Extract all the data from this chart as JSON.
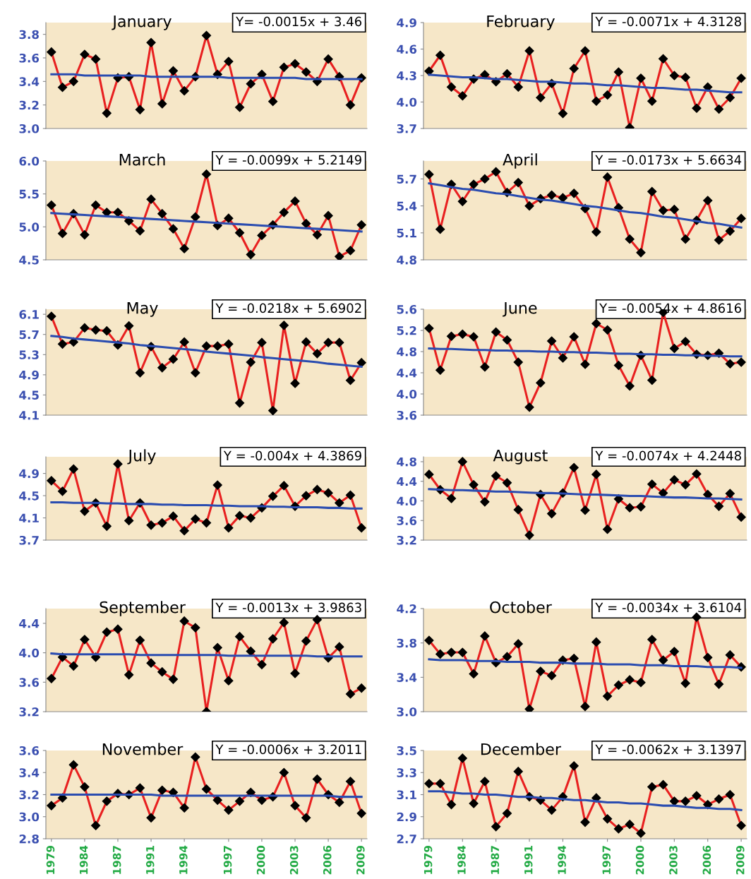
{
  "chart_data": [
    {
      "type": "line",
      "title": "January",
      "categories": [
        "1979",
        null,
        null,
        "1984",
        null,
        null,
        "1987",
        null,
        null,
        "1991",
        null,
        null,
        "1994",
        null,
        null,
        null,
        "1997",
        null,
        null,
        "2000",
        null,
        null,
        "2003",
        null,
        null,
        "2006",
        null,
        null,
        "2009"
      ],
      "tick_labels": "y",
      "ylim": [
        3.0,
        3.9
      ],
      "yticks": [
        {
          "value": 3.0,
          "label": "3.0"
        },
        3.2,
        3.4,
        3.6,
        3.8
      ],
      "marker": "diamond",
      "annotations": [
        "Y= -0.0015x + 3.46"
      ],
      "series": [
        {
          "color": "#e82020",
          "values": [
            3.65,
            3.35,
            3.4,
            3.63,
            3.59,
            3.13,
            3.43,
            3.44,
            3.16,
            3.73,
            3.21,
            3.49,
            3.32,
            3.44,
            3.79,
            3.46,
            3.57,
            3.18,
            3.38,
            3.46,
            3.23,
            3.52,
            3.55,
            3.48,
            3.4,
            3.59,
            3.44,
            3.2,
            3.43
          ]
        },
        {
          "color": "#2a4cb0",
          "marker": "none",
          "values": [
            3.46,
            3.46,
            3.46,
            3.45,
            3.45,
            3.45,
            3.45,
            3.45,
            3.45,
            3.44,
            3.44,
            3.44,
            3.44,
            3.44,
            3.44,
            3.44,
            3.43,
            3.43,
            3.43,
            3.43,
            3.43,
            3.43,
            3.43,
            3.42,
            3.42,
            3.42,
            3.42,
            3.42,
            3.42
          ]
        }
      ]
    },
    {
      "type": "line",
      "title": "February",
      "categories": [
        "1979",
        null,
        null,
        "1984",
        null,
        null,
        "1987",
        null,
        null,
        "1991",
        null,
        null,
        "1994",
        null,
        null,
        null,
        "1997",
        null,
        null,
        "2000",
        null,
        null,
        "2003",
        null,
        null,
        "2006",
        null,
        null,
        "2009"
      ],
      "tick_labels": "y",
      "ylim": [
        3.7,
        4.9
      ],
      "yticks": [
        3.7,
        {
          "value": 4.0,
          "label": "4.0"
        },
        4.3,
        4.6,
        4.9
      ],
      "marker": "diamond",
      "annotations": [
        "Y = -0.0071x + 4.3128"
      ],
      "series": [
        {
          "color": "#e82020",
          "values": [
            4.35,
            4.53,
            4.17,
            4.07,
            4.26,
            4.31,
            4.23,
            4.32,
            4.17,
            4.58,
            4.05,
            4.21,
            3.87,
            4.38,
            4.58,
            4.01,
            4.08,
            4.34,
            3.71,
            4.27,
            4.01,
            4.49,
            4.3,
            4.28,
            3.93,
            4.17,
            3.92,
            4.05,
            4.27
          ]
        },
        {
          "color": "#2a4cb0",
          "marker": "none",
          "values": [
            4.31,
            4.3,
            4.29,
            4.28,
            4.28,
            4.27,
            4.26,
            4.26,
            4.25,
            4.24,
            4.23,
            4.23,
            4.22,
            4.21,
            4.21,
            4.2,
            4.19,
            4.19,
            4.18,
            4.17,
            4.16,
            4.16,
            4.15,
            4.14,
            4.14,
            4.13,
            4.12,
            4.11,
            4.11
          ]
        }
      ]
    },
    {
      "type": "line",
      "title": "March",
      "categories": [
        "1979",
        null,
        null,
        "1984",
        null,
        null,
        "1987",
        null,
        null,
        "1991",
        null,
        null,
        "1994",
        null,
        null,
        null,
        "1997",
        null,
        null,
        "2000",
        null,
        null,
        "2003",
        null,
        null,
        "2006",
        null,
        null,
        "2009"
      ],
      "tick_labels": "y",
      "ylim": [
        4.5,
        6.0
      ],
      "yticks": [
        4.5,
        {
          "value": 5.0,
          "label": "5.0"
        },
        5.5,
        {
          "value": 6.0,
          "label": "6.0"
        }
      ],
      "marker": "diamond",
      "annotations": [
        "Y = -0.0099x + 5.2149"
      ],
      "series": [
        {
          "color": "#e82020",
          "values": [
            5.33,
            4.9,
            5.2,
            4.88,
            5.33,
            5.22,
            5.22,
            5.09,
            4.94,
            5.42,
            5.2,
            4.97,
            4.67,
            5.15,
            5.8,
            5.02,
            5.13,
            4.91,
            4.58,
            4.87,
            5.03,
            5.22,
            5.39,
            5.05,
            4.88,
            5.17,
            4.55,
            4.64,
            5.03
          ]
        },
        {
          "color": "#2a4cb0",
          "marker": "none",
          "values": [
            5.21,
            5.2,
            5.19,
            5.18,
            5.17,
            5.16,
            5.15,
            5.14,
            5.13,
            5.12,
            5.11,
            5.1,
            5.09,
            5.08,
            5.07,
            5.06,
            5.05,
            5.04,
            5.03,
            5.02,
            5.01,
            5.0,
            4.99,
            4.98,
            4.97,
            4.96,
            4.95,
            4.94,
            4.93
          ]
        }
      ]
    },
    {
      "type": "line",
      "title": "April",
      "categories": [
        "1979",
        null,
        null,
        "1984",
        null,
        null,
        "1987",
        null,
        null,
        "1991",
        null,
        null,
        "1994",
        null,
        null,
        null,
        "1997",
        null,
        null,
        "2000",
        null,
        null,
        "2003",
        null,
        null,
        "2006",
        null,
        null,
        "2009"
      ],
      "tick_labels": "y",
      "ylim": [
        4.8,
        5.9
      ],
      "yticks": [
        4.8,
        5.1,
        5.4,
        5.7
      ],
      "marker": "diamond",
      "annotations": [
        "Y = -0.0173x + 5.6634"
      ],
      "series": [
        {
          "color": "#e82020",
          "values": [
            5.75,
            5.14,
            5.64,
            5.45,
            5.64,
            5.7,
            5.78,
            5.55,
            5.66,
            5.4,
            5.48,
            5.52,
            5.49,
            5.54,
            5.37,
            5.11,
            5.72,
            5.38,
            5.03,
            4.88,
            5.56,
            5.35,
            5.36,
            5.03,
            5.24,
            5.46,
            5.02,
            5.12,
            5.26
          ]
        },
        {
          "color": "#2a4cb0",
          "marker": "none",
          "values": [
            5.65,
            5.63,
            5.61,
            5.59,
            5.58,
            5.56,
            5.54,
            5.53,
            5.51,
            5.49,
            5.47,
            5.46,
            5.44,
            5.42,
            5.4,
            5.39,
            5.37,
            5.35,
            5.33,
            5.32,
            5.3,
            5.28,
            5.27,
            5.25,
            5.23,
            5.21,
            5.2,
            5.18,
            5.16
          ]
        }
      ]
    },
    {
      "type": "line",
      "title": "May",
      "categories": [
        "1979",
        null,
        null,
        "1984",
        null,
        null,
        "1987",
        null,
        null,
        "1991",
        null,
        null,
        "1994",
        null,
        null,
        null,
        "1997",
        null,
        null,
        "2000",
        null,
        null,
        "2003",
        null,
        null,
        "2006",
        null,
        null,
        "2009"
      ],
      "tick_labels": "y",
      "ylim": [
        4.1,
        6.2
      ],
      "yticks": [
        4.1,
        4.5,
        4.9,
        5.3,
        5.7,
        6.1
      ],
      "marker": "diamond",
      "annotations": [
        "Y = -0.0218x + 5.6902"
      ],
      "series": [
        {
          "color": "#e82020",
          "values": [
            6.06,
            5.51,
            5.55,
            5.83,
            5.79,
            5.77,
            5.49,
            5.87,
            4.94,
            5.46,
            5.04,
            5.21,
            5.55,
            4.94,
            5.47,
            5.47,
            5.51,
            4.34,
            5.15,
            5.54,
            4.19,
            5.88,
            4.73,
            5.55,
            5.32,
            5.54,
            5.54,
            4.79,
            5.14
          ]
        },
        {
          "color": "#2a4cb0",
          "marker": "none",
          "values": [
            5.67,
            5.65,
            5.62,
            5.6,
            5.58,
            5.56,
            5.54,
            5.52,
            5.49,
            5.47,
            5.45,
            5.43,
            5.41,
            5.39,
            5.36,
            5.34,
            5.32,
            5.3,
            5.28,
            5.25,
            5.23,
            5.21,
            5.19,
            5.17,
            5.15,
            5.12,
            5.1,
            5.08,
            5.06
          ]
        }
      ]
    },
    {
      "type": "line",
      "title": "June",
      "categories": [
        "1979",
        null,
        null,
        "1984",
        null,
        null,
        "1987",
        null,
        null,
        "1991",
        null,
        null,
        "1994",
        null,
        null,
        null,
        "1997",
        null,
        null,
        "2000",
        null,
        null,
        "2003",
        null,
        null,
        "2006",
        null,
        null,
        "2009"
      ],
      "tick_labels": "y",
      "ylim": [
        3.6,
        5.6
      ],
      "yticks": [
        3.6,
        {
          "value": 4.0,
          "label": "4.0"
        },
        4.4,
        4.8,
        5.2,
        5.6
      ],
      "marker": "diamond",
      "annotations": [
        "Y= -0.0054x + 4.8616"
      ],
      "series": [
        {
          "color": "#e82020",
          "values": [
            5.24,
            4.45,
            5.09,
            5.13,
            5.08,
            4.51,
            5.17,
            5.02,
            4.6,
            3.75,
            4.21,
            5.0,
            4.68,
            5.08,
            4.56,
            5.33,
            5.21,
            4.54,
            4.15,
            4.73,
            4.26,
            5.54,
            4.86,
            4.99,
            4.75,
            4.73,
            4.77,
            4.57,
            4.6
          ]
        },
        {
          "color": "#2a4cb0",
          "marker": "none",
          "values": [
            4.86,
            4.85,
            4.85,
            4.84,
            4.83,
            4.83,
            4.82,
            4.82,
            4.81,
            4.81,
            4.8,
            4.8,
            4.79,
            4.79,
            4.78,
            4.78,
            4.77,
            4.76,
            4.76,
            4.75,
            4.75,
            4.74,
            4.74,
            4.73,
            4.73,
            4.72,
            4.72,
            4.71,
            4.71
          ]
        }
      ]
    },
    {
      "type": "line",
      "title": "July",
      "categories": [
        "1979",
        null,
        null,
        "1984",
        null,
        null,
        "1987",
        null,
        null,
        "1991",
        null,
        null,
        "1994",
        null,
        null,
        null,
        "1997",
        null,
        null,
        "2000",
        null,
        null,
        "2003",
        null,
        null,
        "2006",
        null,
        null,
        "2009"
      ],
      "tick_labels": "y",
      "ylim": [
        3.7,
        5.2
      ],
      "yticks": [
        3.7,
        4.1,
        4.5,
        4.9
      ],
      "marker": "diamond",
      "annotations": [
        "Y = -0.004x + 4.3869"
      ],
      "series": [
        {
          "color": "#e82020",
          "values": [
            4.77,
            4.58,
            4.98,
            4.22,
            4.37,
            3.95,
            5.07,
            4.05,
            4.37,
            3.97,
            4.01,
            4.13,
            3.87,
            4.08,
            4.01,
            4.69,
            3.92,
            4.14,
            4.1,
            4.28,
            4.49,
            4.68,
            4.31,
            4.5,
            4.61,
            4.55,
            4.37,
            4.51,
            3.92
          ]
        },
        {
          "color": "#2a4cb0",
          "marker": "none",
          "values": [
            4.38,
            4.38,
            4.37,
            4.37,
            4.37,
            4.36,
            4.36,
            4.35,
            4.35,
            4.35,
            4.34,
            4.34,
            4.33,
            4.33,
            4.33,
            4.32,
            4.32,
            4.31,
            4.31,
            4.31,
            4.3,
            4.3,
            4.29,
            4.29,
            4.29,
            4.28,
            4.28,
            4.27,
            4.27
          ]
        }
      ]
    },
    {
      "type": "line",
      "title": "August",
      "categories": [
        "1979",
        null,
        null,
        "1984",
        null,
        null,
        "1987",
        null,
        null,
        "1991",
        null,
        null,
        "1994",
        null,
        null,
        null,
        "1997",
        null,
        null,
        "2000",
        null,
        null,
        "2003",
        null,
        null,
        "2006",
        null,
        null,
        "2009"
      ],
      "tick_labels": "y",
      "ylim": [
        3.2,
        4.9
      ],
      "yticks": [
        3.2,
        3.6,
        {
          "value": 4.0,
          "label": "4.0"
        },
        4.4,
        4.8
      ],
      "marker": "diamond",
      "annotations": [
        "Y = -0.0074x + 4.2448"
      ],
      "series": [
        {
          "color": "#e82020",
          "values": [
            4.54,
            4.23,
            4.05,
            4.8,
            4.33,
            3.98,
            4.51,
            4.37,
            3.82,
            3.3,
            4.13,
            3.74,
            4.16,
            4.68,
            3.81,
            4.54,
            3.42,
            4.04,
            3.86,
            3.88,
            4.34,
            4.16,
            4.43,
            4.33,
            4.55,
            4.13,
            3.89,
            4.15,
            3.67
          ]
        },
        {
          "color": "#2a4cb0",
          "marker": "none",
          "values": [
            4.24,
            4.23,
            4.22,
            4.22,
            4.21,
            4.2,
            4.19,
            4.19,
            4.18,
            4.17,
            4.16,
            4.16,
            4.15,
            4.14,
            4.13,
            4.13,
            4.12,
            4.11,
            4.1,
            4.1,
            4.09,
            4.08,
            4.07,
            4.07,
            4.06,
            4.05,
            4.05,
            4.04,
            4.03
          ]
        }
      ]
    },
    {
      "type": "line",
      "title": "September",
      "categories": [
        "1979",
        null,
        null,
        "1984",
        null,
        null,
        "1987",
        null,
        null,
        "1991",
        null,
        null,
        "1994",
        null,
        null,
        null,
        "1997",
        null,
        null,
        "2000",
        null,
        null,
        "2003",
        null,
        null,
        "2006",
        null,
        null,
        "2009"
      ],
      "tick_labels": "y",
      "ylim": [
        3.2,
        4.6
      ],
      "yticks": [
        3.2,
        3.6,
        {
          "value": 4.0,
          "label": "4.0"
        },
        4.4
      ],
      "marker": "diamond",
      "annotations": [
        "Y = -0.0013x + 3.9863"
      ],
      "series": [
        {
          "color": "#e82020",
          "values": [
            3.65,
            3.94,
            3.82,
            4.18,
            3.94,
            4.28,
            4.32,
            3.7,
            4.17,
            3.86,
            3.74,
            3.64,
            4.43,
            4.34,
            3.2,
            4.07,
            3.62,
            4.22,
            4.02,
            3.84,
            4.19,
            4.41,
            3.72,
            4.16,
            4.45,
            3.93,
            4.08,
            3.44,
            3.52
          ]
        },
        {
          "color": "#2a4cb0",
          "marker": "none",
          "values": [
            3.99,
            3.98,
            3.98,
            3.98,
            3.98,
            3.98,
            3.98,
            3.98,
            3.97,
            3.97,
            3.97,
            3.97,
            3.97,
            3.97,
            3.97,
            3.97,
            3.96,
            3.96,
            3.96,
            3.96,
            3.96,
            3.96,
            3.96,
            3.96,
            3.95,
            3.95,
            3.95,
            3.95,
            3.95
          ]
        }
      ]
    },
    {
      "type": "line",
      "title": "October",
      "categories": [
        "1979",
        null,
        null,
        "1984",
        null,
        null,
        "1987",
        null,
        null,
        "1991",
        null,
        null,
        "1994",
        null,
        null,
        null,
        "1997",
        null,
        null,
        "2000",
        null,
        null,
        "2003",
        null,
        null,
        "2006",
        null,
        null,
        "2009"
      ],
      "tick_labels": "y",
      "ylim": [
        3.0,
        4.2
      ],
      "yticks": [
        {
          "value": 3.0,
          "label": "3.0"
        },
        3.4,
        3.8,
        4.2
      ],
      "marker": "diamond",
      "annotations": [
        "Y = -0.0034x + 3.6104"
      ],
      "series": [
        {
          "color": "#e82020",
          "values": [
            3.83,
            3.67,
            3.69,
            3.69,
            3.44,
            3.88,
            3.57,
            3.64,
            3.79,
            3.03,
            3.47,
            3.42,
            3.6,
            3.62,
            3.06,
            3.81,
            3.18,
            3.31,
            3.37,
            3.34,
            3.84,
            3.6,
            3.7,
            3.33,
            4.1,
            3.63,
            3.32,
            3.66,
            3.52
          ]
        },
        {
          "color": "#2a4cb0",
          "marker": "none",
          "values": [
            3.61,
            3.6,
            3.6,
            3.6,
            3.59,
            3.59,
            3.59,
            3.58,
            3.58,
            3.58,
            3.57,
            3.57,
            3.57,
            3.56,
            3.56,
            3.56,
            3.55,
            3.55,
            3.55,
            3.54,
            3.54,
            3.54,
            3.53,
            3.53,
            3.53,
            3.52,
            3.52,
            3.52,
            3.51
          ]
        }
      ]
    },
    {
      "type": "line",
      "title": "November",
      "categories": [
        "1979",
        null,
        null,
        "1984",
        null,
        null,
        "1987",
        null,
        null,
        "1991",
        null,
        null,
        "1994",
        null,
        null,
        null,
        "1997",
        null,
        null,
        "2000",
        null,
        null,
        "2003",
        null,
        null,
        "2006",
        null,
        null,
        "2009"
      ],
      "ylim": [
        2.8,
        3.6
      ],
      "yticks": [
        2.8,
        {
          "value": 3.0,
          "label": "3.0"
        },
        3.2,
        3.4,
        3.6
      ],
      "marker": "diamond",
      "annotations": [
        "Y = -0.0006x + 3.2011"
      ],
      "series": [
        {
          "color": "#e82020",
          "values": [
            3.1,
            3.17,
            3.47,
            3.27,
            2.92,
            3.14,
            3.21,
            3.2,
            3.26,
            2.99,
            3.24,
            3.22,
            3.08,
            3.54,
            3.25,
            3.15,
            3.06,
            3.14,
            3.22,
            3.15,
            3.18,
            3.4,
            3.1,
            2.99,
            3.34,
            3.2,
            3.13,
            3.32,
            3.03
          ]
        },
        {
          "color": "#2a4cb0",
          "marker": "none",
          "values": [
            3.2,
            3.2,
            3.2,
            3.2,
            3.2,
            3.2,
            3.2,
            3.2,
            3.2,
            3.2,
            3.19,
            3.19,
            3.19,
            3.19,
            3.19,
            3.19,
            3.19,
            3.19,
            3.19,
            3.19,
            3.19,
            3.19,
            3.19,
            3.19,
            3.19,
            3.19,
            3.18,
            3.18,
            3.18
          ]
        }
      ]
    },
    {
      "type": "line",
      "title": "December",
      "categories": [
        "1979",
        null,
        null,
        "1984",
        null,
        null,
        "1987",
        null,
        null,
        "1991",
        null,
        null,
        "1994",
        null,
        null,
        null,
        "1997",
        null,
        null,
        "2000",
        null,
        null,
        "2003",
        null,
        null,
        "2006",
        null,
        null,
        "2009"
      ],
      "ylim": [
        2.7,
        3.5
      ],
      "yticks": [
        2.7,
        2.9,
        3.1,
        3.3,
        3.5
      ],
      "marker": "diamond",
      "annotations": [
        "Y = -0.0062x + 3.1397"
      ],
      "series": [
        {
          "color": "#e82020",
          "values": [
            3.2,
            3.2,
            3.01,
            3.43,
            3.02,
            3.22,
            2.81,
            2.93,
            3.31,
            3.08,
            3.05,
            2.96,
            3.08,
            3.36,
            2.85,
            3.07,
            2.88,
            2.79,
            2.83,
            2.75,
            3.17,
            3.19,
            3.04,
            3.04,
            3.09,
            3.01,
            3.06,
            3.1,
            2.82
          ]
        },
        {
          "color": "#2a4cb0",
          "marker": "none",
          "values": [
            3.13,
            3.13,
            3.12,
            3.11,
            3.11,
            3.1,
            3.1,
            3.09,
            3.08,
            3.08,
            3.07,
            3.07,
            3.06,
            3.05,
            3.05,
            3.04,
            3.03,
            3.03,
            3.02,
            3.02,
            3.01,
            3.0,
            3.0,
            2.99,
            2.98,
            2.98,
            2.97,
            2.97,
            2.96
          ]
        }
      ]
    }
  ]
}
